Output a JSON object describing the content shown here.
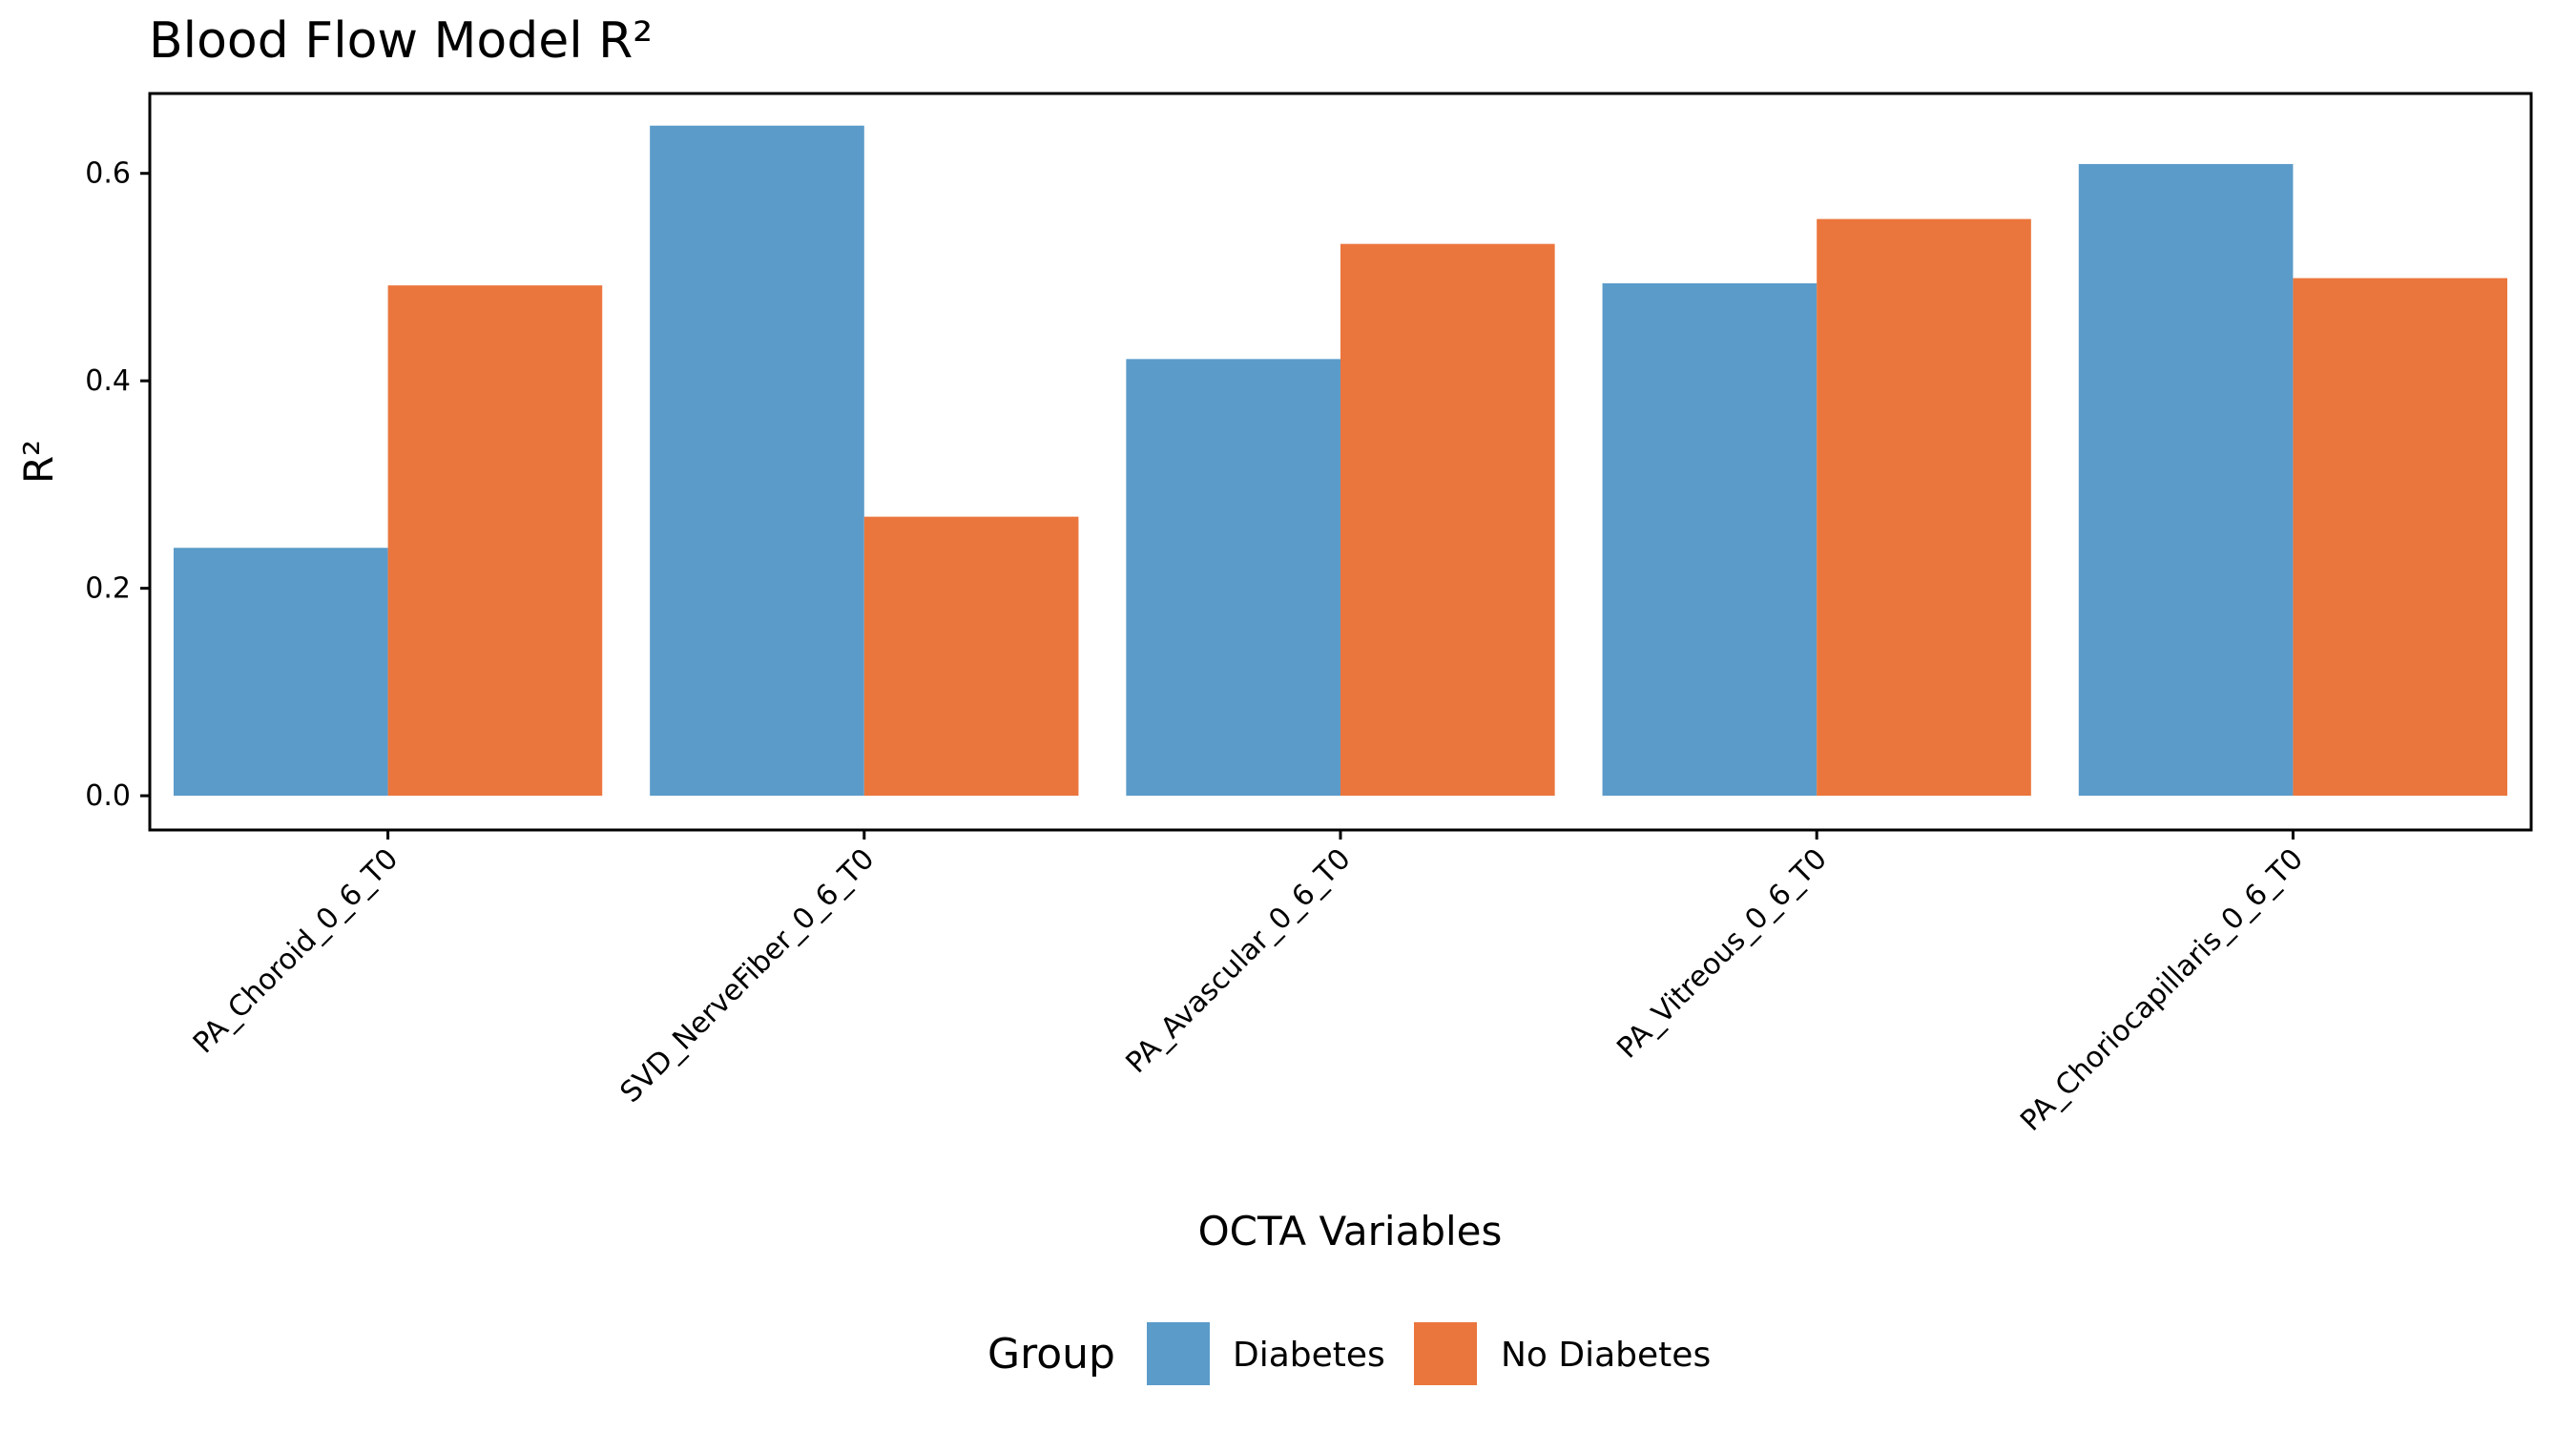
{
  "chart_data": {
    "type": "bar",
    "title": "Blood Flow Model R²",
    "xlabel": "OCTA Variables",
    "ylabel": "R²",
    "categories": [
      "PA_Choroid_0_6_T0",
      "SVD_NerveFiber_0_6_T0",
      "PA_Avascular_0_6_T0",
      "PA_Vitreous_0_6_T0",
      "PA_Choriocapillaris_0_6_T0"
    ],
    "series": [
      {
        "name": "Diabetes",
        "color": "#5b9bc9",
        "values": [
          0.239,
          0.646,
          0.421,
          0.494,
          0.609
        ]
      },
      {
        "name": "No Diabetes",
        "color": "#ea763d",
        "values": [
          0.492,
          0.269,
          0.532,
          0.556,
          0.499
        ]
      }
    ],
    "ylim": [
      -0.033,
      0.677
    ],
    "yticks": [
      "0.0",
      "0.2",
      "0.4",
      "0.6"
    ],
    "ytick_values": [
      0.0,
      0.2,
      0.4,
      0.6
    ],
    "legend": {
      "title": "Group",
      "placement": "bottom"
    },
    "grid": false
  }
}
